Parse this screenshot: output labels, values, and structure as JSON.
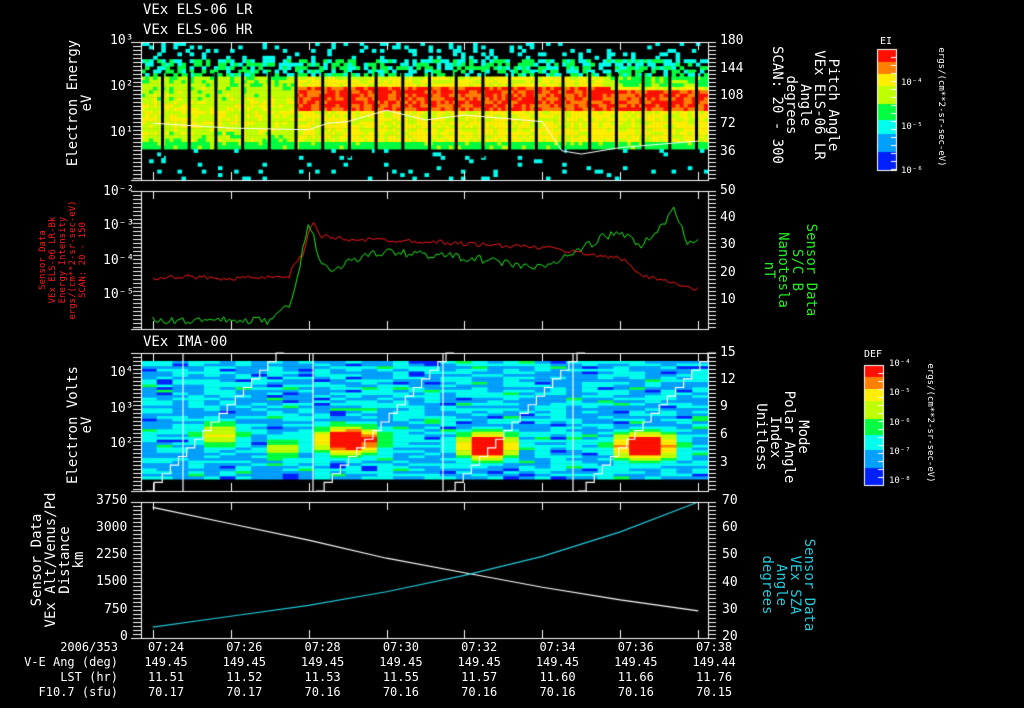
{
  "titles": {
    "panel1_line1": "VEx ELS-06 LR",
    "panel1_line2": "VEx ELS-06 HR",
    "panel3": "VEx IMA-00"
  },
  "panel1": {
    "ylabel": [
      "Electron Energy",
      "eV"
    ],
    "y2label": [
      "Pitch Angle",
      "VEx ELS-06 LR",
      "Angle",
      "degrees",
      "SCAN: 20 - 300"
    ],
    "yticks": [
      "10³",
      "10²",
      "10¹"
    ],
    "y2ticks": [
      "180",
      "144",
      "108",
      "72",
      "36"
    ],
    "colorbar": {
      "title": "EI",
      "ticks": [
        "10⁻⁴",
        "10⁻⁵",
        "10⁻⁶"
      ],
      "units": "ergs/(cm**2-sr-sec-eV)"
    }
  },
  "panel2": {
    "ylabel": [
      "Sensor Data",
      "VEx ELS-06 LR-Bk",
      "Energy Intensity",
      "ergs/(cm**2-sr-sec-eV)",
      "SCAN: 20 - 150"
    ],
    "y2label": [
      "Sensor Data",
      "S/C B",
      "Nanotesla",
      "nT"
    ],
    "yticks": [
      "10⁻²",
      "10⁻³",
      "10⁻⁴",
      "10⁻⁵"
    ],
    "y2ticks": [
      "50",
      "40",
      "30",
      "20",
      "10"
    ],
    "colors": {
      "intensity": "#ff1a1a",
      "bfield": "#22ee22"
    }
  },
  "panel3": {
    "ylabel": [
      "Electron Volts",
      "eV"
    ],
    "y2label": [
      "Mode",
      "Polar Angle",
      "Index",
      "Unitless"
    ],
    "yticks": [
      "10⁴",
      "10³",
      "10²"
    ],
    "y2ticks": [
      "15",
      "12",
      "9",
      "6",
      "3"
    ],
    "colorbar": {
      "title": "DEF",
      "ticks": [
        "10⁻⁴",
        "10⁻⁵",
        "10⁻⁶",
        "10⁻⁷",
        "10⁻⁸"
      ],
      "units": "ergs/(cm**2-sr-sec-eV)"
    }
  },
  "panel4": {
    "ylabel": [
      "Sensor Data",
      "VEx Alt/Venus/Pd",
      "Distance",
      "km"
    ],
    "y2label": [
      "Sensor Data",
      "VEx SZA",
      "Angle",
      "degrees"
    ],
    "yticks": [
      "3750",
      "3000",
      "2250",
      "1500",
      "750",
      "0"
    ],
    "y2ticks": [
      "70",
      "60",
      "50",
      "40",
      "30",
      "20"
    ],
    "colors": {
      "altitude": "#ffffff",
      "sza": "#22ccdd"
    }
  },
  "xaxis": {
    "rows": [
      {
        "label": "2006/353",
        "values": [
          "07:24",
          "07:26",
          "07:28",
          "07:30",
          "07:32",
          "07:34",
          "07:36",
          "07:38"
        ]
      },
      {
        "label": "V-E Ang (deg)",
        "values": [
          "149.45",
          "149.45",
          "149.45",
          "149.45",
          "149.45",
          "149.45",
          "149.45",
          "149.44"
        ]
      },
      {
        "label": "LST (hr)",
        "values": [
          "11.51",
          "11.52",
          "11.53",
          "11.55",
          "11.57",
          "11.60",
          "11.66",
          "11.76"
        ]
      },
      {
        "label": "F10.7 (sfu)",
        "values": [
          "70.17",
          "70.17",
          "70.16",
          "70.16",
          "70.16",
          "70.16",
          "70.16",
          "70.15"
        ]
      }
    ]
  },
  "chart_data": [
    {
      "type": "heatmap",
      "title": "VEx ELS-06 LR / VEx ELS-06 HR",
      "xlabel": "UT 2006/353",
      "ylabel": "Electron Energy (eV)",
      "y2label": "Pitch Angle (degrees)",
      "x_range": [
        "07:24",
        "07:38"
      ],
      "ylim_log10": [
        0,
        3
      ],
      "y2lim": [
        0,
        180
      ],
      "colorbar": {
        "label": "EI ergs/(cm**2-sr-sec-eV)",
        "range": [
          "1e-6",
          "1e-3"
        ]
      },
      "notes": "Pre-07:28 moderate intensity (green/yellow) 5-200 eV; after 07:28 intense red band ~30-150 eV; white pitch-angle trace ~65-80 deg, dropping to ~36 deg near 07:34",
      "pitch_angle_trace": {
        "t_min": [
          0,
          2,
          4,
          4.5,
          5,
          6,
          7,
          8,
          9,
          10,
          10.5,
          11,
          12,
          13,
          14
        ],
        "deg": [
          70,
          64,
          62,
          70,
          72,
          86,
          74,
          80,
          76,
          72,
          36,
          32,
          40,
          44,
          48
        ]
      }
    },
    {
      "type": "line",
      "title": "",
      "xlabel": "UT",
      "ylabel": "Energy Intensity ergs/(cm**2-sr-sec-eV)",
      "y2label": "S/C B (nT)",
      "ylim": [
        1e-06,
        0.01
      ],
      "y2lim": [
        0,
        50
      ],
      "series": [
        {
          "name": "ELS-06 LR-Bk Intensity",
          "axis": "left-log",
          "t_min": [
            0,
            1,
            2,
            3,
            3.5,
            3.9,
            4.1,
            4.3,
            5,
            6,
            7,
            8,
            9,
            10,
            11,
            12,
            12.5,
            13,
            13.5,
            14
          ],
          "values": [
            3e-05,
            3.2e-05,
            3e-05,
            3.1e-05,
            3e-05,
            0.00015,
            0.0012,
            0.0005,
            0.0004,
            0.00038,
            0.00035,
            0.0003,
            0.00026,
            0.00023,
            0.00016,
            0.00011,
            3.5e-05,
            3e-05,
            1.8e-05,
            1.4e-05
          ]
        },
        {
          "name": "S/C B",
          "axis": "right",
          "t_min": [
            0,
            1,
            2,
            3,
            3.6,
            4.0,
            4.3,
            4.6,
            5,
            6,
            7,
            8,
            9,
            10,
            11,
            11.5,
            12,
            12.5,
            13,
            13.4,
            13.7,
            14
          ],
          "values": [
            3,
            3,
            3,
            3,
            10,
            40,
            25,
            20,
            25,
            28,
            27,
            26,
            24,
            22,
            29,
            33,
            35,
            30,
            36,
            44,
            31,
            33
          ]
        }
      ],
      "xticks": [
        "07:24",
        "07:26",
        "07:28",
        "07:30",
        "07:32",
        "07:34",
        "07:36",
        "07:38"
      ]
    },
    {
      "type": "heatmap",
      "title": "VEx IMA-00",
      "ylabel": "Electron Volts (eV)",
      "y2label": "Mode / Polar Angle Index (Unitless)",
      "ylim_log10": [
        1,
        4.6
      ],
      "y2lim": [
        0,
        15
      ],
      "colorbar": {
        "label": "DEF ergs/(cm**2-sr-sec-eV)",
        "range": [
          "1e-8",
          "1e-4"
        ]
      },
      "notes": "Background blue; intense red/yellow blobs ~100-1000 eV near 07:28, 07:30-07:31, 07:34, 07:37; white staircase polar angle index ramps 0-15 repeating ~every 3.2 min"
    },
    {
      "type": "line",
      "ylabel": "VEx Alt/Venus/Pd Distance (km)",
      "y2label": "VEx SZA Angle (degrees)",
      "ylim": [
        0,
        3750
      ],
      "y2lim": [
        20,
        70
      ],
      "series": [
        {
          "name": "Altitude",
          "axis": "left",
          "t_min": [
            0,
            2,
            4,
            6,
            8,
            10,
            12,
            14
          ],
          "values": [
            3600,
            3150,
            2700,
            2200,
            1800,
            1400,
            1050,
            750
          ]
        },
        {
          "name": "SZA",
          "axis": "right",
          "t_min": [
            0,
            2,
            4,
            6,
            8,
            10,
            12,
            14
          ],
          "values": [
            24,
            28,
            32,
            37,
            43,
            50,
            59,
            70
          ]
        }
      ],
      "xticks": [
        "07:24",
        "07:26",
        "07:28",
        "07:30",
        "07:32",
        "07:34",
        "07:36",
        "07:38"
      ]
    }
  ]
}
